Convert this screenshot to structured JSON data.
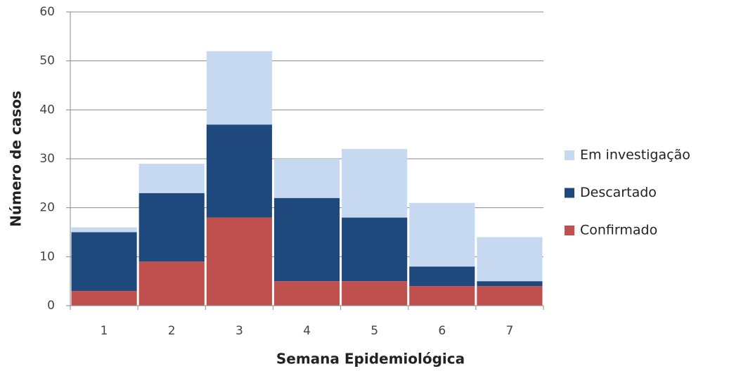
{
  "chart_data": {
    "type": "stacked_bar",
    "x_label": "Semana Epidemiológica",
    "y_label": "Número de casos",
    "categories": [
      "1",
      "2",
      "3",
      "4",
      "5",
      "6",
      "7"
    ],
    "series": [
      {
        "name": "Confirmado",
        "color": "#c0504d",
        "values": [
          3,
          9,
          18,
          5,
          5,
          4,
          4
        ]
      },
      {
        "name": "Descartado",
        "color": "#1f497d",
        "values": [
          12,
          14,
          19,
          17,
          13,
          4,
          1
        ]
      },
      {
        "name": "Em investigação",
        "color": "#c6d9f1",
        "values": [
          1,
          6,
          15,
          8,
          14,
          13,
          9
        ]
      }
    ],
    "ylim": [
      0,
      60
    ],
    "yticks": [
      0,
      10,
      20,
      30,
      40,
      50,
      60
    ],
    "grid": true,
    "legend": "right"
  }
}
